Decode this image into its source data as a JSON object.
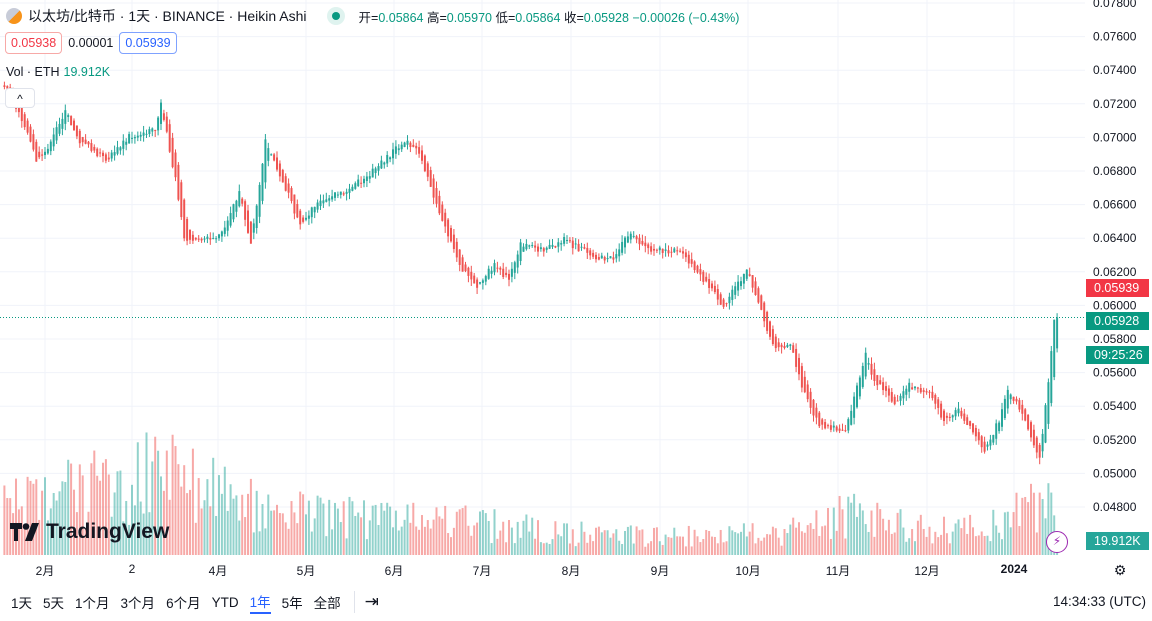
{
  "header": {
    "symbol": "以太坊/比特币 · 1天 · BINANCE · Heikin Ashi",
    "open_label": "开=",
    "open": "0.05864",
    "high_label": "高=",
    "high": "0.05970",
    "low_label": "低=",
    "low": "0.05864",
    "close_label": "收=",
    "close": "0.05928",
    "change": "−0.00026 (−0.43%)"
  },
  "quote": {
    "sell": "0.05938",
    "spread": "0.00001",
    "buy": "0.05939"
  },
  "volume": {
    "label": "Vol · ETH",
    "value": "19.912K"
  },
  "collapse_icon": "chevron-up",
  "brand": "TradingView",
  "price_labels": {
    "ask": "0.05939",
    "last": "0.05928",
    "countdown": "09:25:26",
    "volume": "19.912K"
  },
  "colors": {
    "up": "#26a69a",
    "down": "#ef5350",
    "ask": "#f23645",
    "last": "#089981",
    "grid": "#f0f3fa"
  },
  "time_axis": [
    "2月",
    "2",
    "4月",
    "5月",
    "6月",
    "7月",
    "8月",
    "9月",
    "10月",
    "11月",
    "12月",
    "2024"
  ],
  "toolbar": {
    "ranges": [
      "1天",
      "5天",
      "1个月",
      "3个月",
      "6个月",
      "YTD",
      "1年",
      "5年",
      "全部"
    ],
    "active": "1年",
    "clock": "14:34:33 (UTC)"
  },
  "chart_data": {
    "type": "candlestick",
    "style": "Heikin Ashi",
    "y_ticks": [
      "0.07800",
      "0.07600",
      "0.07400",
      "0.07200",
      "0.07000",
      "0.06800",
      "0.06600",
      "0.06400",
      "0.06200",
      "0.06000",
      "0.05800",
      "0.05600",
      "0.05400",
      "0.05200",
      "0.05000",
      "0.04800"
    ],
    "ylim": [
      0.048,
      0.078
    ],
    "grid": true,
    "close_path": [
      [
        "2023-01-18",
        0.0731
      ],
      [
        "2023-01-23",
        0.0716
      ],
      [
        "2023-01-29",
        0.0687
      ],
      [
        "2023-02-01",
        0.069
      ],
      [
        "2023-02-08",
        0.0716
      ],
      [
        "2023-02-13",
        0.0698
      ],
      [
        "2023-02-22",
        0.0687
      ],
      [
        "2023-03-02",
        0.0701
      ],
      [
        "2023-03-11",
        0.0704
      ],
      [
        "2023-03-13",
        0.0719
      ],
      [
        "2023-03-18",
        0.0675
      ],
      [
        "2023-03-21",
        0.0639
      ],
      [
        "2023-03-30",
        0.0639
      ],
      [
        "2023-04-04",
        0.0645
      ],
      [
        "2023-04-09",
        0.0669
      ],
      [
        "2023-04-13",
        0.0636
      ],
      [
        "2023-04-18",
        0.0698
      ],
      [
        "2023-04-23",
        0.0678
      ],
      [
        "2023-04-30",
        0.0648
      ],
      [
        "2023-05-07",
        0.0663
      ],
      [
        "2023-05-17",
        0.0669
      ],
      [
        "2023-05-26",
        0.0681
      ],
      [
        "2023-06-05",
        0.0698
      ],
      [
        "2023-06-10",
        0.0692
      ],
      [
        "2023-06-17",
        0.0654
      ],
      [
        "2023-06-24",
        0.0624
      ],
      [
        "2023-06-30",
        0.0612
      ],
      [
        "2023-07-06",
        0.0624
      ],
      [
        "2023-07-11",
        0.0615
      ],
      [
        "2023-07-15",
        0.0636
      ],
      [
        "2023-07-23",
        0.0633
      ],
      [
        "2023-07-30",
        0.0639
      ],
      [
        "2023-08-08",
        0.063
      ],
      [
        "2023-08-16",
        0.0627
      ],
      [
        "2023-08-21",
        0.0642
      ],
      [
        "2023-08-29",
        0.0633
      ],
      [
        "2023-09-08",
        0.0633
      ],
      [
        "2023-09-15",
        0.0618
      ],
      [
        "2023-09-23",
        0.06
      ],
      [
        "2023-10-01",
        0.0621
      ],
      [
        "2023-10-07",
        0.0591
      ],
      [
        "2023-10-10",
        0.0576
      ],
      [
        "2023-10-16",
        0.0576
      ],
      [
        "2023-10-21",
        0.0547
      ],
      [
        "2023-10-26",
        0.0529
      ],
      [
        "2023-11-04",
        0.0526
      ],
      [
        "2023-11-07",
        0.0544
      ],
      [
        "2023-11-11",
        0.057
      ],
      [
        "2023-11-14",
        0.0556
      ],
      [
        "2023-11-21",
        0.0541
      ],
      [
        "2023-11-26",
        0.0553
      ],
      [
        "2023-12-03",
        0.0547
      ],
      [
        "2023-12-08",
        0.0532
      ],
      [
        "2023-12-13",
        0.0538
      ],
      [
        "2023-12-22",
        0.0514
      ],
      [
        "2023-12-27",
        0.0532
      ],
      [
        "2023-12-30",
        0.055
      ],
      [
        "2024-01-05",
        0.0532
      ],
      [
        "2024-01-10",
        0.0508
      ],
      [
        "2024-01-13",
        0.0556
      ],
      [
        "2024-01-15",
        0.0591
      ],
      [
        "2024-01-16",
        0.05928
      ]
    ],
    "volume_path_k": [
      [
        "2023-01-18",
        60
      ],
      [
        "2023-03-13",
        110
      ],
      [
        "2023-04-09",
        70
      ],
      [
        "2023-05-07",
        50
      ],
      [
        "2023-06-17",
        45
      ],
      [
        "2023-07-15",
        35
      ],
      [
        "2023-08-16",
        25
      ],
      [
        "2023-09-23",
        25
      ],
      [
        "2023-10-16",
        30
      ],
      [
        "2023-11-11",
        60
      ],
      [
        "2023-12-03",
        30
      ],
      [
        "2023-12-27",
        40
      ],
      [
        "2024-01-13",
        80
      ],
      [
        "2024-01-16",
        19.912
      ]
    ]
  }
}
